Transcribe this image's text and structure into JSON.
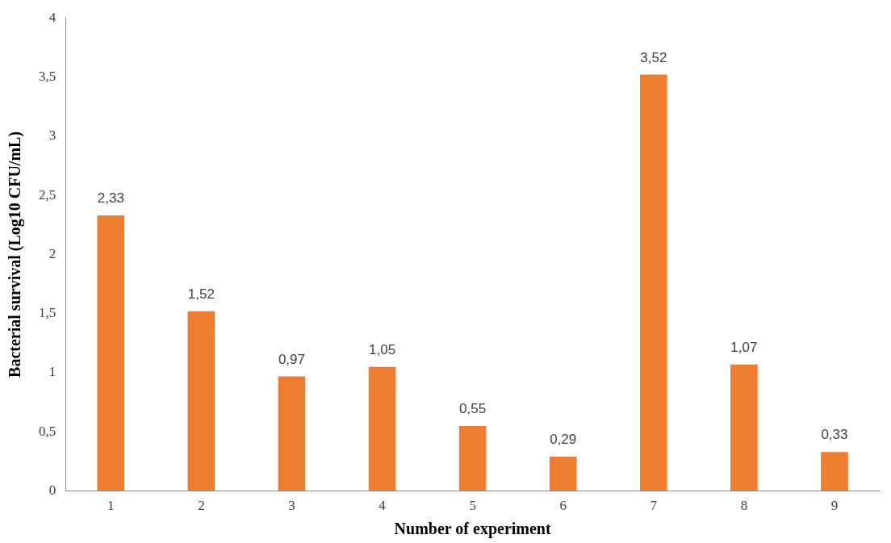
{
  "chart_data": {
    "type": "bar",
    "xlabel": "Number of experiment",
    "ylabel": "Bacterial survival (Log10 CFU/mL)",
    "categories": [
      "1",
      "2",
      "3",
      "4",
      "5",
      "6",
      "7",
      "8",
      "9"
    ],
    "values": [
      2.33,
      1.52,
      0.97,
      1.05,
      0.55,
      0.29,
      3.52,
      1.07,
      0.33
    ],
    "value_labels": [
      "2,33",
      "1,52",
      "0,97",
      "1,05",
      "0,55",
      "0,29",
      "3,52",
      "1,07",
      "0,33"
    ],
    "color": "#ed7d31",
    "ylim": [
      0,
      4
    ],
    "yticks": [
      0,
      {
        "value": 0.5,
        "label": "0,5"
      },
      1,
      {
        "value": 1.5,
        "label": "1,5"
      },
      2,
      {
        "value": 2.5,
        "label": "2,5"
      },
      3,
      {
        "value": 3.5,
        "label": "3,5"
      },
      4
    ],
    "grid": false,
    "legend": false
  }
}
